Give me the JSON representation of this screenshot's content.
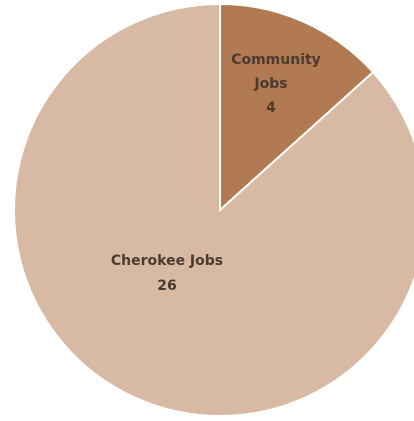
{
  "chart_data": {
    "type": "pie",
    "slices": [
      {
        "label": "Community Jobs",
        "value": 4,
        "color": "#b27a52"
      },
      {
        "label": "Cherokee Jobs",
        "value": 26,
        "color": "#d8b9a3"
      }
    ],
    "title": "",
    "legend": "none"
  },
  "labels": {
    "community": {
      "line1": "Community",
      "line2": "Jobs",
      "value": "4"
    },
    "cherokee": {
      "line1": "Cherokee Jobs",
      "value": "26"
    }
  }
}
